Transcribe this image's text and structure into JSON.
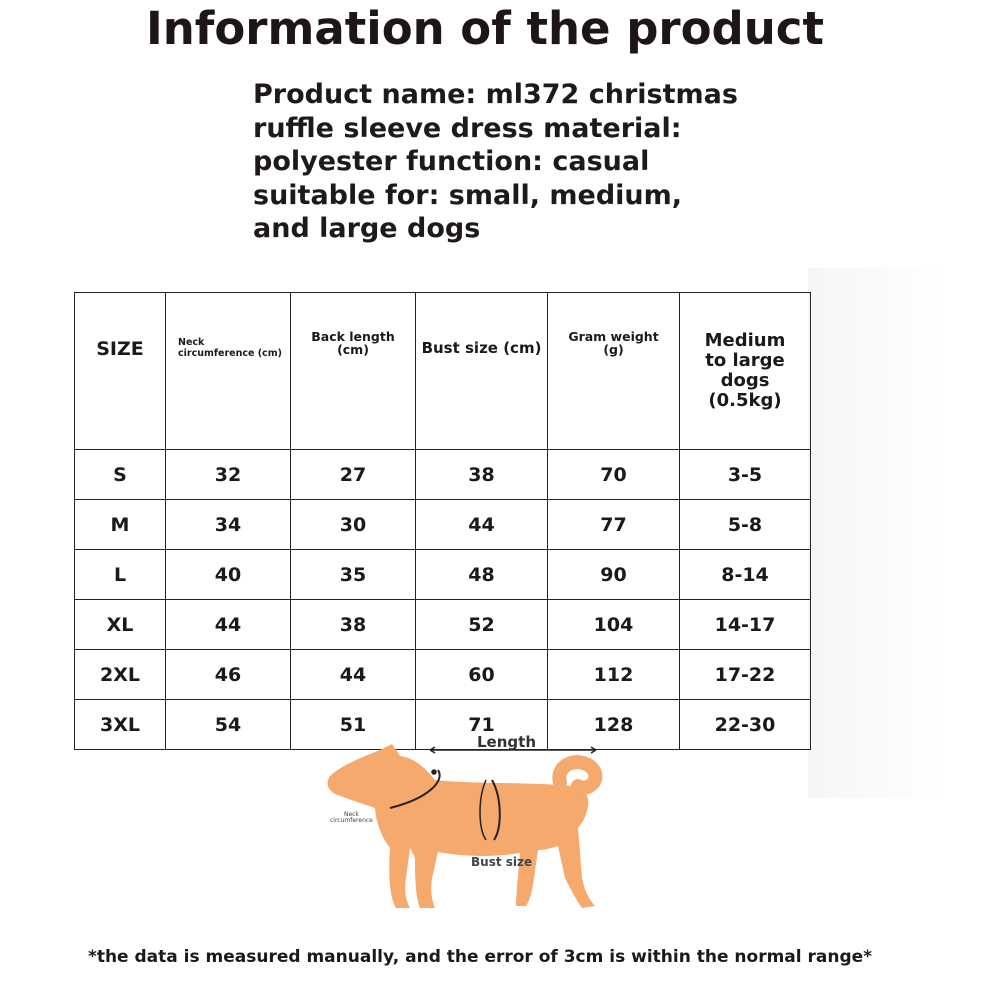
{
  "title": "Information of the product",
  "description_lines": [
    "Product name: ml372 christmas",
    "ruffle sleeve dress material:",
    "polyester function: casual",
    "suitable for: small, medium,",
    "and large dogs"
  ],
  "table": {
    "headers": {
      "size": "SIZE",
      "neck_line1": "Neck",
      "neck_line2": "circumference (cm)",
      "back_line1": "Back length",
      "back_line2": "(cm)",
      "bust": "Bust size (cm)",
      "gram_line1": "Gram weight",
      "gram_line2": "(g)",
      "dog_line1": "Medium",
      "dog_line2": "to large",
      "dog_line3": "dogs",
      "dog_line4": "(0.5kg)"
    },
    "rows": [
      [
        "S",
        "32",
        "27",
        "38",
        "70",
        "3-5"
      ],
      [
        "M",
        "34",
        "30",
        "44",
        "77",
        "5-8"
      ],
      [
        "L",
        "40",
        "35",
        "48",
        "90",
        "8-14"
      ],
      [
        "XL",
        "44",
        "38",
        "52",
        "104",
        "14-17"
      ],
      [
        "2XL",
        "46",
        "44",
        "60",
        "112",
        "17-22"
      ],
      [
        "3XL",
        "54",
        "51",
        "71",
        "128",
        "22-30"
      ]
    ]
  },
  "diagram": {
    "length_label": "Length",
    "neck_label_line1": "Neck",
    "neck_label_line2": "circumference",
    "bust_label": "Bust size",
    "dog_color": "#f5a96d"
  },
  "footnote": "*the data is measured manually, and the error of 3cm is within the normal range*"
}
